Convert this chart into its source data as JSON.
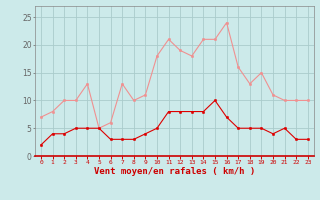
{
  "hours": [
    0,
    1,
    2,
    3,
    4,
    5,
    6,
    7,
    8,
    9,
    10,
    11,
    12,
    13,
    14,
    15,
    16,
    17,
    18,
    19,
    20,
    21,
    22,
    23
  ],
  "rafales": [
    7,
    8,
    10,
    10,
    13,
    5,
    6,
    13,
    10,
    11,
    18,
    21,
    19,
    18,
    21,
    21,
    24,
    16,
    13,
    15,
    11,
    10,
    10,
    10
  ],
  "moyen": [
    2,
    4,
    4,
    5,
    5,
    5,
    3,
    3,
    3,
    4,
    5,
    8,
    8,
    8,
    8,
    10,
    7,
    5,
    5,
    5,
    4,
    5,
    3,
    3
  ],
  "bg_color": "#cceaea",
  "grid_color": "#aacccc",
  "line_color_rafales": "#f09090",
  "line_color_moyen": "#dd0000",
  "xlabel": "Vent moyen/en rafales ( km/h )",
  "ylim": [
    0,
    27
  ],
  "yticks": [
    0,
    5,
    10,
    15,
    20,
    25
  ],
  "xlim": [
    -0.5,
    23.5
  ],
  "xtick_fontsize": 4.5,
  "ytick_fontsize": 5.5,
  "xlabel_fontsize": 6.5
}
